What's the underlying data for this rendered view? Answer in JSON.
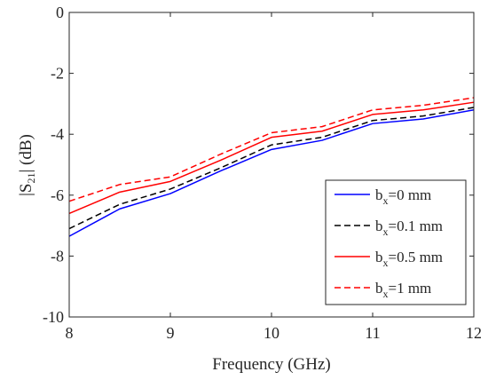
{
  "chart_data": {
    "type": "line",
    "title": "",
    "xlabel": "Frequency (GHz)",
    "ylabel_main": "|S",
    "ylabel_sub": "21",
    "ylabel_tail": "|  (dB)",
    "xlim": [
      8,
      12
    ],
    "ylim": [
      -10,
      0
    ],
    "xticks": [
      8,
      9,
      10,
      11,
      12
    ],
    "yticks": [
      -10,
      -8,
      -6,
      -4,
      -2,
      0
    ],
    "xtick_labels": [
      "8",
      "9",
      "10",
      "11",
      "12"
    ],
    "ytick_labels": [
      "-10",
      "-8",
      "-6",
      "-4",
      "-2",
      "0"
    ],
    "grid": false,
    "legend_position": "bottom-right",
    "x": [
      8,
      8.5,
      9,
      9.5,
      10,
      10.5,
      11,
      11.5,
      12
    ],
    "series": [
      {
        "name": "b_x=0 mm",
        "legend_main": "b",
        "legend_sub": "x",
        "legend_tail": "=0 mm",
        "color": "#0000ff",
        "style": "solid",
        "values": [
          -7.35,
          -6.45,
          -5.95,
          -5.2,
          -4.5,
          -4.2,
          -3.65,
          -3.5,
          -3.2
        ]
      },
      {
        "name": "b_x=0.1 mm",
        "legend_main": "b",
        "legend_sub": "x",
        "legend_tail": "=0.1 mm",
        "color": "#000000",
        "style": "dashed",
        "values": [
          -7.1,
          -6.3,
          -5.8,
          -5.1,
          -4.35,
          -4.1,
          -3.55,
          -3.4,
          -3.12
        ]
      },
      {
        "name": "b_x=0.5 mm",
        "legend_main": "b",
        "legend_sub": "x",
        "legend_tail": "=0.5 mm",
        "color": "#ff0000",
        "style": "solid",
        "values": [
          -6.6,
          -5.9,
          -5.55,
          -4.85,
          -4.1,
          -3.9,
          -3.35,
          -3.2,
          -2.95
        ]
      },
      {
        "name": "b_x=1 mm",
        "legend_main": "b",
        "legend_sub": "x",
        "legend_tail": "=1 mm",
        "color": "#ff0000",
        "style": "dashed",
        "values": [
          -6.2,
          -5.65,
          -5.4,
          -4.65,
          -3.95,
          -3.75,
          -3.2,
          -3.05,
          -2.8
        ]
      }
    ]
  }
}
